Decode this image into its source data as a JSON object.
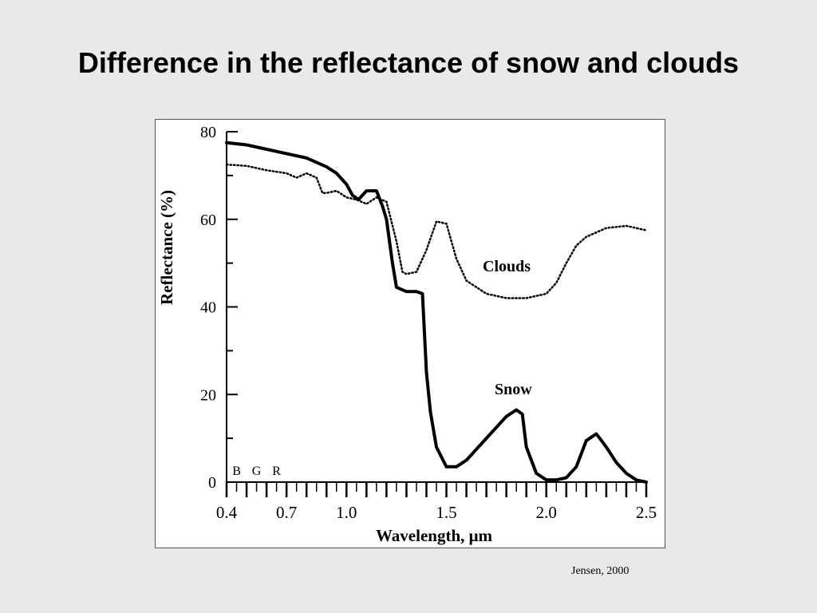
{
  "slide": {
    "title": "Difference in the reflectance of snow and clouds",
    "credit": "Jensen, 2000"
  },
  "chart_data": {
    "type": "line",
    "title": "",
    "xlabel": "Wavelength, μm",
    "ylabel": "Reflectance (%)",
    "xlim": [
      0.4,
      2.5
    ],
    "ylim": [
      0,
      80
    ],
    "x_tick_labels": [
      "0.4",
      "0.7",
      "1.0",
      "1.5",
      "2.0",
      "2.5"
    ],
    "y_tick_labels": [
      "0",
      "20",
      "40",
      "60",
      "80"
    ],
    "band_labels": [
      "B",
      "G",
      "R"
    ],
    "grid": false,
    "series": [
      {
        "name": "Clouds",
        "style": "dotted",
        "x": [
          0.4,
          0.5,
          0.6,
          0.7,
          0.75,
          0.8,
          0.85,
          0.88,
          0.9,
          0.95,
          1.0,
          1.05,
          1.1,
          1.15,
          1.2,
          1.25,
          1.28,
          1.3,
          1.35,
          1.4,
          1.45,
          1.5,
          1.55,
          1.6,
          1.7,
          1.8,
          1.9,
          2.0,
          2.05,
          2.1,
          2.15,
          2.2,
          2.3,
          2.4,
          2.45,
          2.5
        ],
        "y": [
          72.5,
          72.2,
          71.2,
          70.5,
          69.5,
          70.5,
          69.5,
          66,
          66,
          66.5,
          65,
          64.5,
          63.5,
          65,
          64,
          55,
          48,
          47.5,
          48,
          53,
          59.5,
          59,
          51,
          46,
          43,
          42,
          42,
          43,
          45.5,
          50,
          54,
          56,
          58,
          58.5,
          58,
          57.5
        ]
      },
      {
        "name": "Snow",
        "style": "solid",
        "x": [
          0.4,
          0.5,
          0.6,
          0.7,
          0.8,
          0.85,
          0.9,
          0.95,
          1.0,
          1.03,
          1.06,
          1.1,
          1.15,
          1.18,
          1.2,
          1.23,
          1.25,
          1.3,
          1.35,
          1.38,
          1.4,
          1.42,
          1.45,
          1.5,
          1.55,
          1.6,
          1.7,
          1.8,
          1.85,
          1.88,
          1.9,
          1.95,
          2.0,
          2.05,
          2.1,
          2.15,
          2.2,
          2.25,
          2.3,
          2.35,
          2.4,
          2.45,
          2.5
        ],
        "y": [
          77.5,
          77,
          76,
          75,
          74,
          73,
          72,
          70.5,
          68,
          65.5,
          64.5,
          66.5,
          66.5,
          63,
          60,
          50,
          44.5,
          43.5,
          43.5,
          43,
          25,
          16,
          8,
          3.5,
          3.5,
          5,
          10,
          15,
          16.5,
          15.5,
          8,
          2,
          0.5,
          0.5,
          1,
          3.5,
          9.5,
          11,
          8,
          4.5,
          2,
          0.5,
          0
        ]
      }
    ]
  }
}
